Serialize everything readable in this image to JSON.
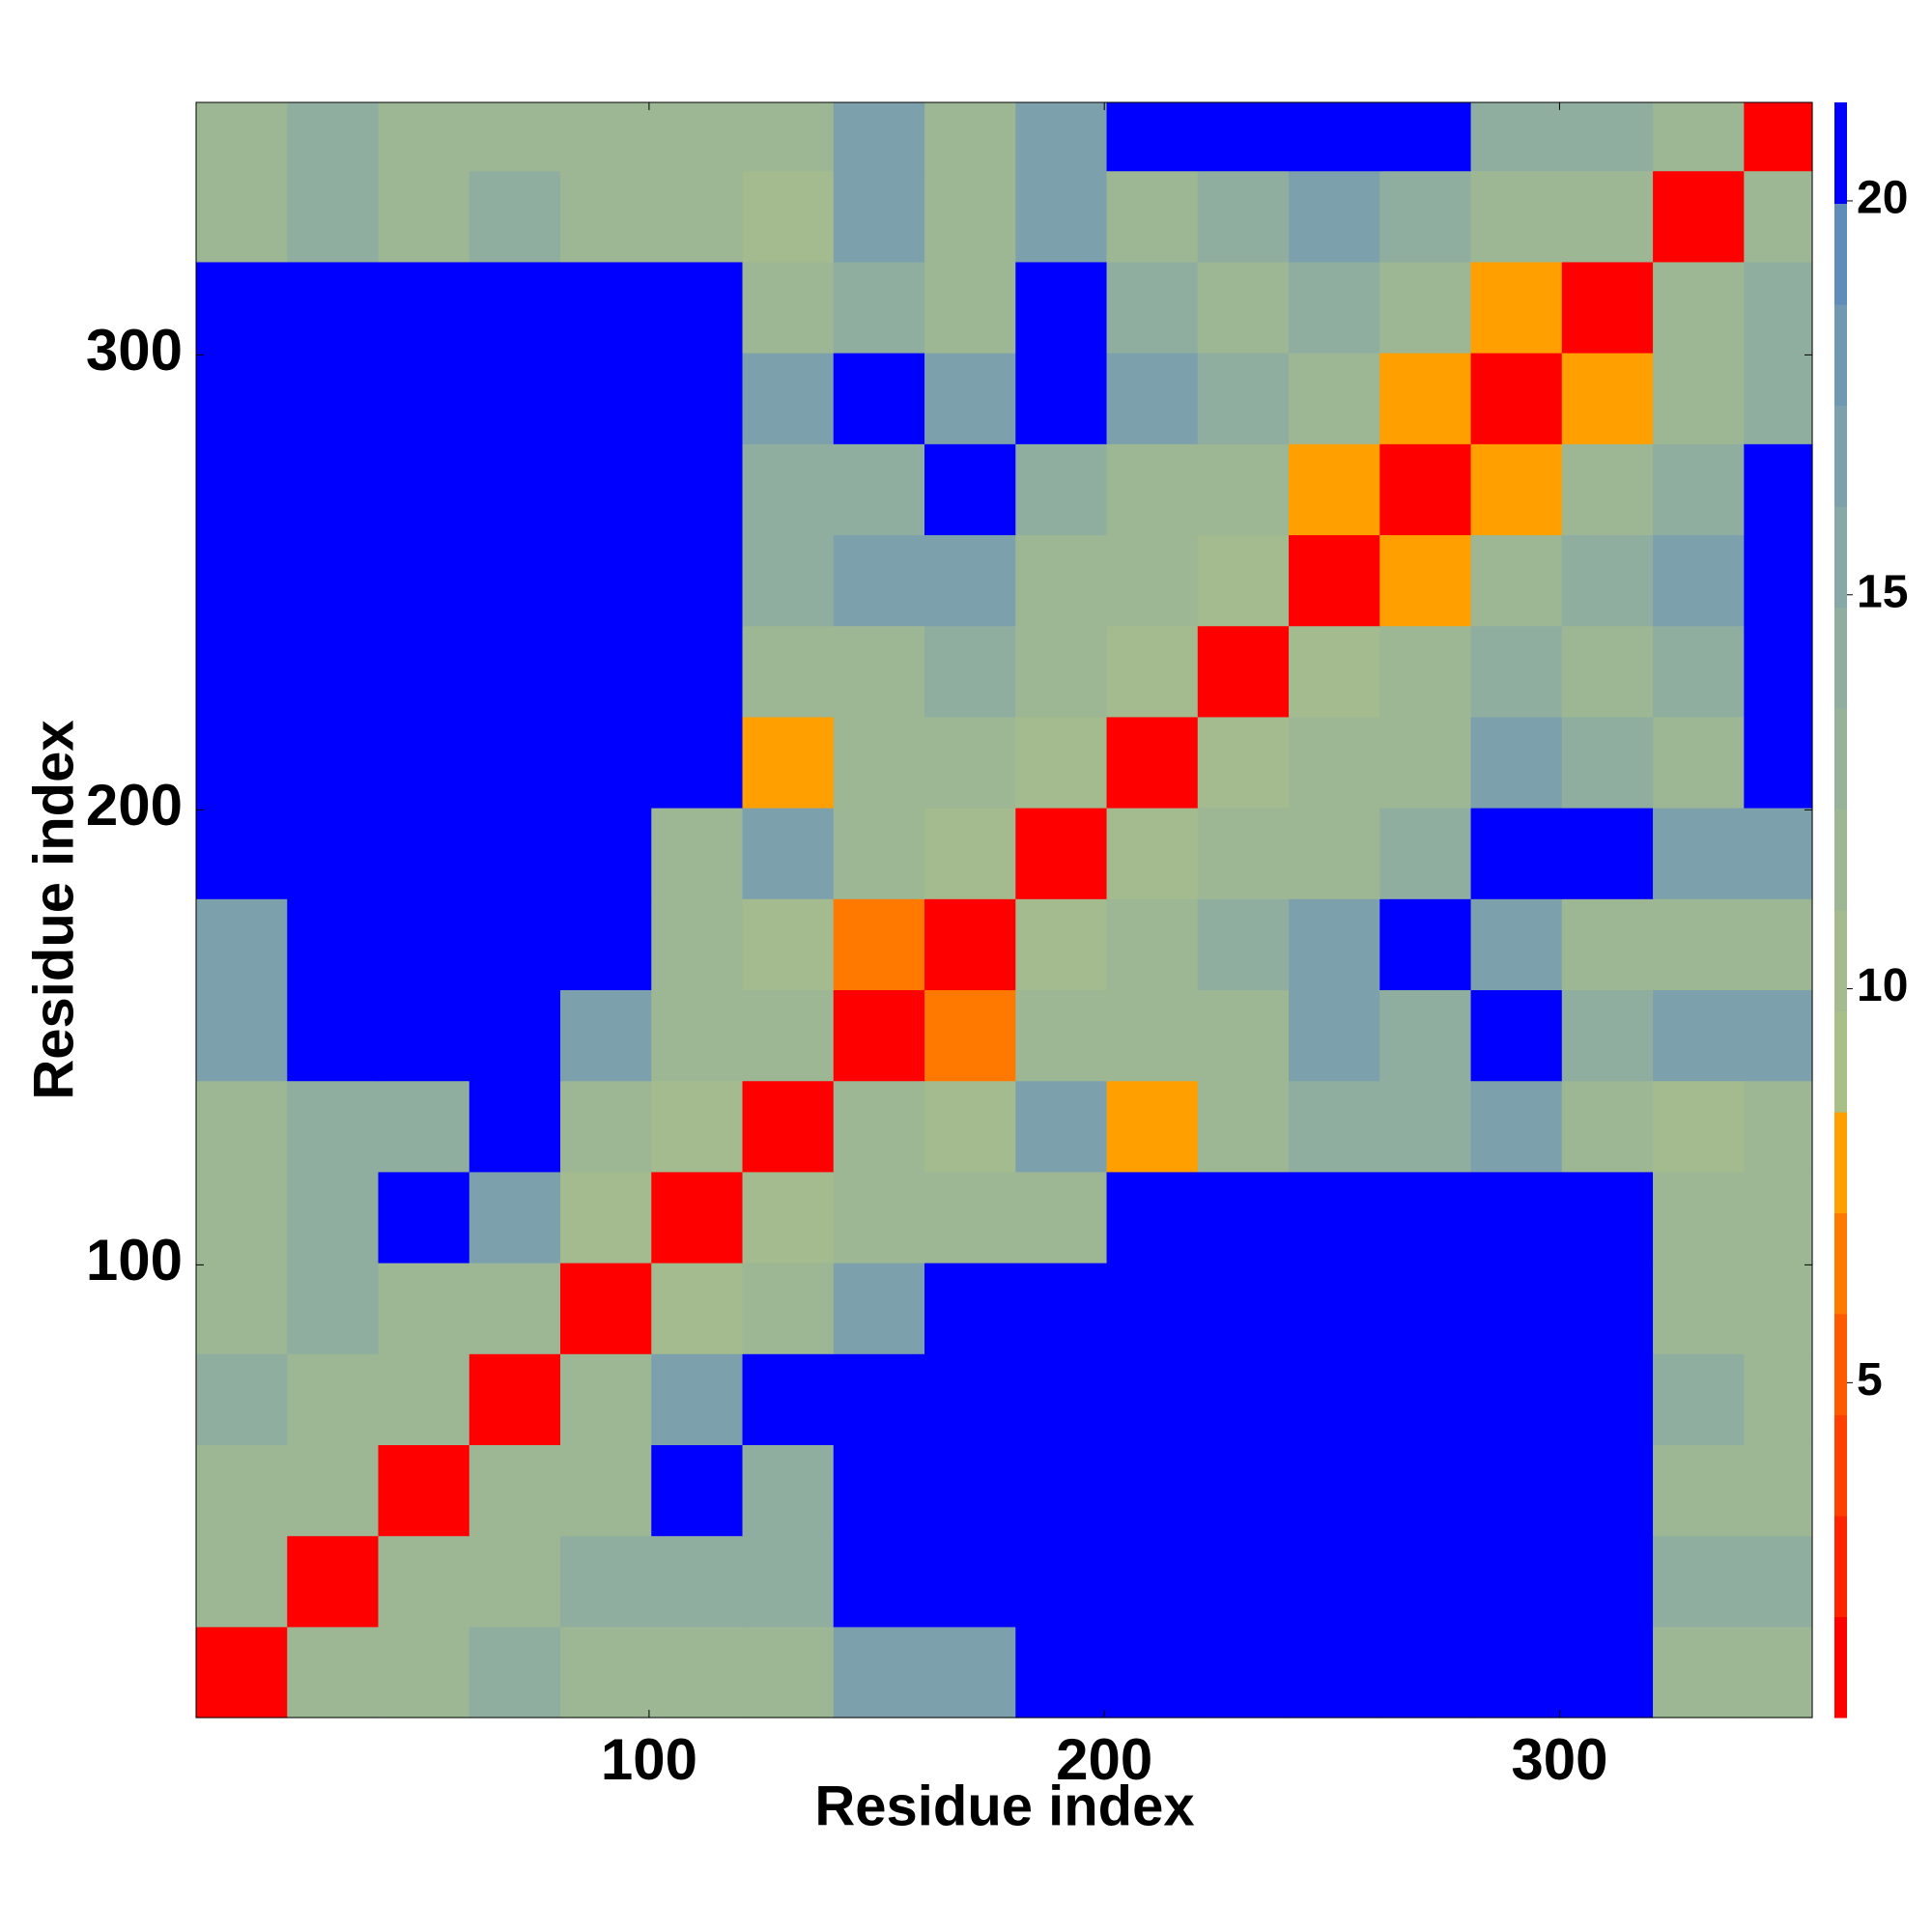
{
  "chart_data": {
    "type": "heatmap",
    "xlabel": "Residue index",
    "ylabel": "Residue index",
    "xbins": [
      0.5,
      20.5,
      40.5,
      60.5,
      80.5,
      100.5,
      120.5,
      140.5,
      160.5,
      180.5,
      200.5,
      220.5,
      240.5,
      260.5,
      280.5,
      300.5,
      320.5,
      340.5,
      355.5
    ],
    "ybins": [
      0.5,
      20.5,
      40.5,
      60.5,
      80.5,
      100.5,
      120.5,
      140.5,
      160.5,
      180.5,
      200.5,
      220.5,
      240.5,
      260.5,
      280.5,
      300.5,
      320.5,
      340.5,
      355.5
    ],
    "xlim": [
      0.5,
      355.5
    ],
    "ylim": [
      0.5,
      355.5
    ],
    "xticks": [
      100,
      200,
      300
    ],
    "yticks": [
      100,
      200,
      300
    ],
    "clim": [
      0.75,
      21.25
    ],
    "cticks": [
      5,
      10,
      15,
      20
    ],
    "colorscale": [
      "#ff0000",
      "#ff2400",
      "#ff4000",
      "#ff5a00",
      "#ff7800",
      "#ffa000",
      "#a8bf88",
      "#a3bb8e",
      "#9db794",
      "#96b39a",
      "#8faea0",
      "#86a8a6",
      "#7da1ac",
      "#7098b2",
      "#5d8db8",
      "#0000ff"
    ],
    "z": [
      [
        2,
        12,
        12,
        14,
        12,
        12,
        12,
        17,
        17,
        21,
        21,
        21,
        21,
        21,
        21,
        21,
        12,
        12
      ],
      [
        12,
        2,
        12,
        12,
        14,
        14,
        14,
        21,
        21,
        21,
        21,
        21,
        21,
        21,
        21,
        21,
        14,
        14
      ],
      [
        12,
        12,
        2,
        12,
        12,
        21,
        14,
        21,
        21,
        21,
        21,
        21,
        21,
        21,
        21,
        21,
        12,
        12
      ],
      [
        14,
        12,
        12,
        2,
        12,
        17,
        21,
        21,
        21,
        21,
        21,
        21,
        21,
        21,
        21,
        21,
        14,
        12
      ],
      [
        12,
        14,
        12,
        12,
        2,
        10,
        12,
        17,
        21,
        21,
        21,
        21,
        21,
        21,
        21,
        21,
        12,
        12
      ],
      [
        12,
        14,
        21,
        17,
        10,
        2,
        10,
        12,
        12,
        12,
        21,
        21,
        21,
        21,
        21,
        21,
        12,
        12
      ],
      [
        12,
        14,
        14,
        21,
        12,
        10,
        2,
        12,
        10,
        17,
        8,
        12,
        14,
        14,
        17,
        12,
        10,
        12
      ],
      [
        17,
        21,
        21,
        21,
        17,
        12,
        12,
        2,
        6,
        12,
        12,
        12,
        17,
        14,
        21,
        14,
        17,
        17
      ],
      [
        17,
        21,
        21,
        21,
        21,
        12,
        10,
        6,
        2,
        10,
        12,
        14,
        17,
        21,
        17,
        12,
        12,
        12
      ],
      [
        21,
        21,
        21,
        21,
        21,
        12,
        17,
        12,
        10,
        2,
        10,
        12,
        12,
        14,
        21,
        21,
        17,
        17
      ],
      [
        21,
        21,
        21,
        21,
        21,
        21,
        8,
        12,
        12,
        10,
        2,
        10,
        12,
        12,
        17,
        14,
        12,
        21
      ],
      [
        21,
        21,
        21,
        21,
        21,
        21,
        12,
        12,
        14,
        12,
        10,
        2,
        10,
        12,
        14,
        12,
        14,
        21
      ],
      [
        21,
        21,
        21,
        21,
        21,
        21,
        14,
        17,
        17,
        12,
        12,
        10,
        2,
        8,
        12,
        14,
        17,
        21
      ],
      [
        21,
        21,
        21,
        21,
        21,
        21,
        14,
        14,
        21,
        14,
        12,
        12,
        8,
        2,
        8,
        12,
        14,
        21
      ],
      [
        21,
        21,
        21,
        21,
        21,
        21,
        17,
        21,
        17,
        21,
        17,
        14,
        12,
        8,
        2,
        8,
        12,
        14
      ],
      [
        21,
        21,
        21,
        21,
        21,
        21,
        12,
        14,
        12,
        21,
        14,
        12,
        14,
        12,
        8,
        2,
        12,
        14
      ],
      [
        12,
        14,
        12,
        14,
        12,
        12,
        10,
        17,
        12,
        17,
        12,
        14,
        17,
        14,
        12,
        12,
        2,
        12
      ],
      [
        12,
        14,
        12,
        12,
        12,
        12,
        12,
        17,
        12,
        17,
        21,
        21,
        21,
        21,
        14,
        14,
        12,
        2
      ]
    ]
  }
}
